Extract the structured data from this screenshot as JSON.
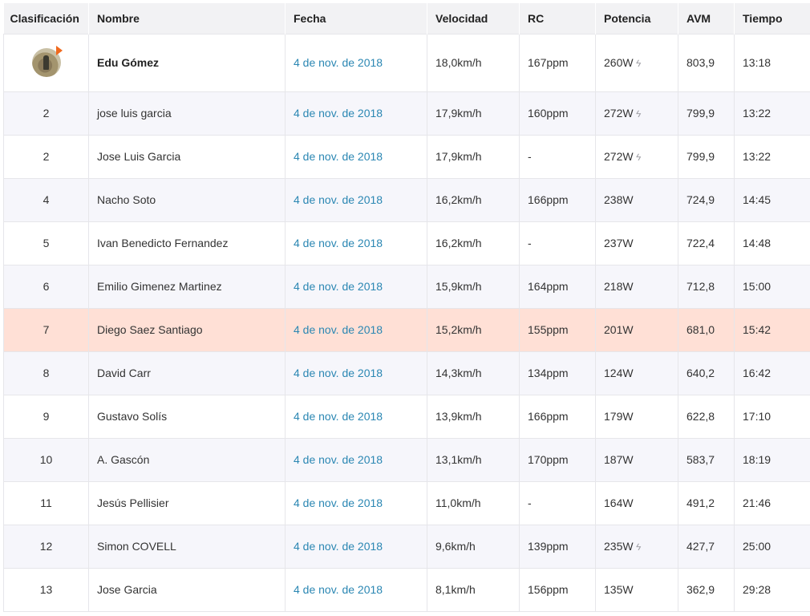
{
  "columns": [
    "Clasificación",
    "Nombre",
    "Fecha",
    "Velocidad",
    "RC",
    "Potencia",
    "AVM",
    "Tiempo"
  ],
  "rows": [
    {
      "rank": "",
      "name": "Edu Gómez",
      "date": "4 de nov. de 2018",
      "speed": "18,0km/h",
      "hr": "167ppm",
      "power": "260W",
      "avm": "803,9",
      "time": "13:18",
      "measured_power": true,
      "avatar": true,
      "bold": true
    },
    {
      "rank": "2",
      "name": "jose luis garcia",
      "date": "4 de nov. de 2018",
      "speed": "17,9km/h",
      "hr": "160ppm",
      "power": "272W",
      "avm": "799,9",
      "time": "13:22",
      "measured_power": true
    },
    {
      "rank": "2",
      "name": "Jose Luis Garcia",
      "date": "4 de nov. de 2018",
      "speed": "17,9km/h",
      "hr": "-",
      "power": "272W",
      "avm": "799,9",
      "time": "13:22",
      "measured_power": true
    },
    {
      "rank": "4",
      "name": "Nacho Soto",
      "date": "4 de nov. de 2018",
      "speed": "16,2km/h",
      "hr": "166ppm",
      "power": "238W",
      "avm": "724,9",
      "time": "14:45"
    },
    {
      "rank": "5",
      "name": "Ivan Benedicto Fernandez",
      "date": "4 de nov. de 2018",
      "speed": "16,2km/h",
      "hr": "-",
      "power": "237W",
      "avm": "722,4",
      "time": "14:48"
    },
    {
      "rank": "6",
      "name": "Emilio Gimenez Martinez",
      "date": "4 de nov. de 2018",
      "speed": "15,9km/h",
      "hr": "164ppm",
      "power": "218W",
      "avm": "712,8",
      "time": "15:00"
    },
    {
      "rank": "7",
      "name": "Diego Saez Santiago",
      "date": "4 de nov. de 2018",
      "speed": "15,2km/h",
      "hr": "155ppm",
      "power": "201W",
      "avm": "681,0",
      "time": "15:42",
      "highlight": true
    },
    {
      "rank": "8",
      "name": "David Carr",
      "date": "4 de nov. de 2018",
      "speed": "14,3km/h",
      "hr": "134ppm",
      "power": "124W",
      "avm": "640,2",
      "time": "16:42"
    },
    {
      "rank": "9",
      "name": "Gustavo Solís",
      "date": "4 de nov. de 2018",
      "speed": "13,9km/h",
      "hr": "166ppm",
      "power": "179W",
      "avm": "622,8",
      "time": "17:10"
    },
    {
      "rank": "10",
      "name": "A. Gascón",
      "date": "4 de nov. de 2018",
      "speed": "13,1km/h",
      "hr": "170ppm",
      "power": "187W",
      "avm": "583,7",
      "time": "18:19"
    },
    {
      "rank": "11",
      "name": "Jesús Pellisier",
      "date": "4 de nov. de 2018",
      "speed": "11,0km/h",
      "hr": "-",
      "power": "164W",
      "avm": "491,2",
      "time": "21:46"
    },
    {
      "rank": "12",
      "name": "Simon COVELL",
      "date": "4 de nov. de 2018",
      "speed": "9,6km/h",
      "hr": "139ppm",
      "power": "235W",
      "avm": "427,7",
      "time": "25:00",
      "measured_power": true
    },
    {
      "rank": "13",
      "name": "Jose Garcia",
      "date": "4 de nov. de 2018",
      "speed": "8,1km/h",
      "hr": "156ppm",
      "power": "135W",
      "avm": "362,9",
      "time": "29:28"
    }
  ],
  "icons": {
    "avatar": "athlete-avatar",
    "power_meter": "lightning-bolt-icon"
  },
  "colors": {
    "link": "#2b87b3",
    "highlight_row": "#ffe0d6",
    "alt_row": "#f6f6fb",
    "header_bg": "#f2f2f4",
    "crown": "#f06a1e"
  }
}
